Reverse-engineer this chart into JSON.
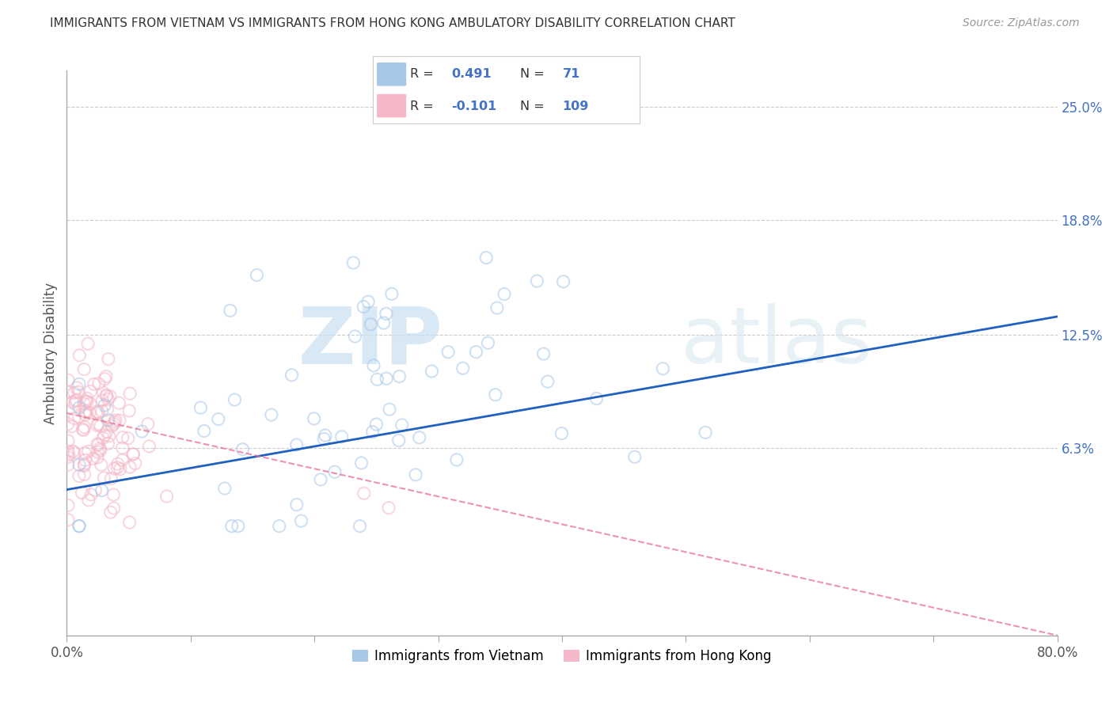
{
  "title": "IMMIGRANTS FROM VIETNAM VS IMMIGRANTS FROM HONG KONG AMBULATORY DISABILITY CORRELATION CHART",
  "source": "Source: ZipAtlas.com",
  "ylabel": "Ambulatory Disability",
  "ytick_labels": [
    "6.3%",
    "12.5%",
    "18.8%",
    "25.0%"
  ],
  "ytick_values": [
    0.063,
    0.125,
    0.188,
    0.25
  ],
  "xlim": [
    0.0,
    0.8
  ],
  "ylim": [
    -0.04,
    0.27
  ],
  "R_vietnam": 0.491,
  "N_vietnam": 71,
  "R_hongkong": -0.101,
  "N_hongkong": 109,
  "color_vietnam": "#a8c8e8",
  "color_hongkong": "#f4b8c8",
  "color_trend_vietnam": "#2060c0",
  "color_trend_hongkong": "#e87090",
  "legend_label_vietnam": "Immigrants from Vietnam",
  "legend_label_hongkong": "Immigrants from Hong Kong",
  "watermark_zip": "ZIP",
  "watermark_atlas": "atlas",
  "background_color": "#ffffff",
  "scatter_alpha": 0.55,
  "scatter_size": 120,
  "vietnam_trend_x0": 0.0,
  "vietnam_trend_y0": 0.04,
  "vietnam_trend_x1": 0.8,
  "vietnam_trend_y1": 0.135,
  "hk_trend_x0": 0.0,
  "hk_trend_y0": 0.082,
  "hk_trend_x1": 0.8,
  "hk_trend_y1": -0.04
}
